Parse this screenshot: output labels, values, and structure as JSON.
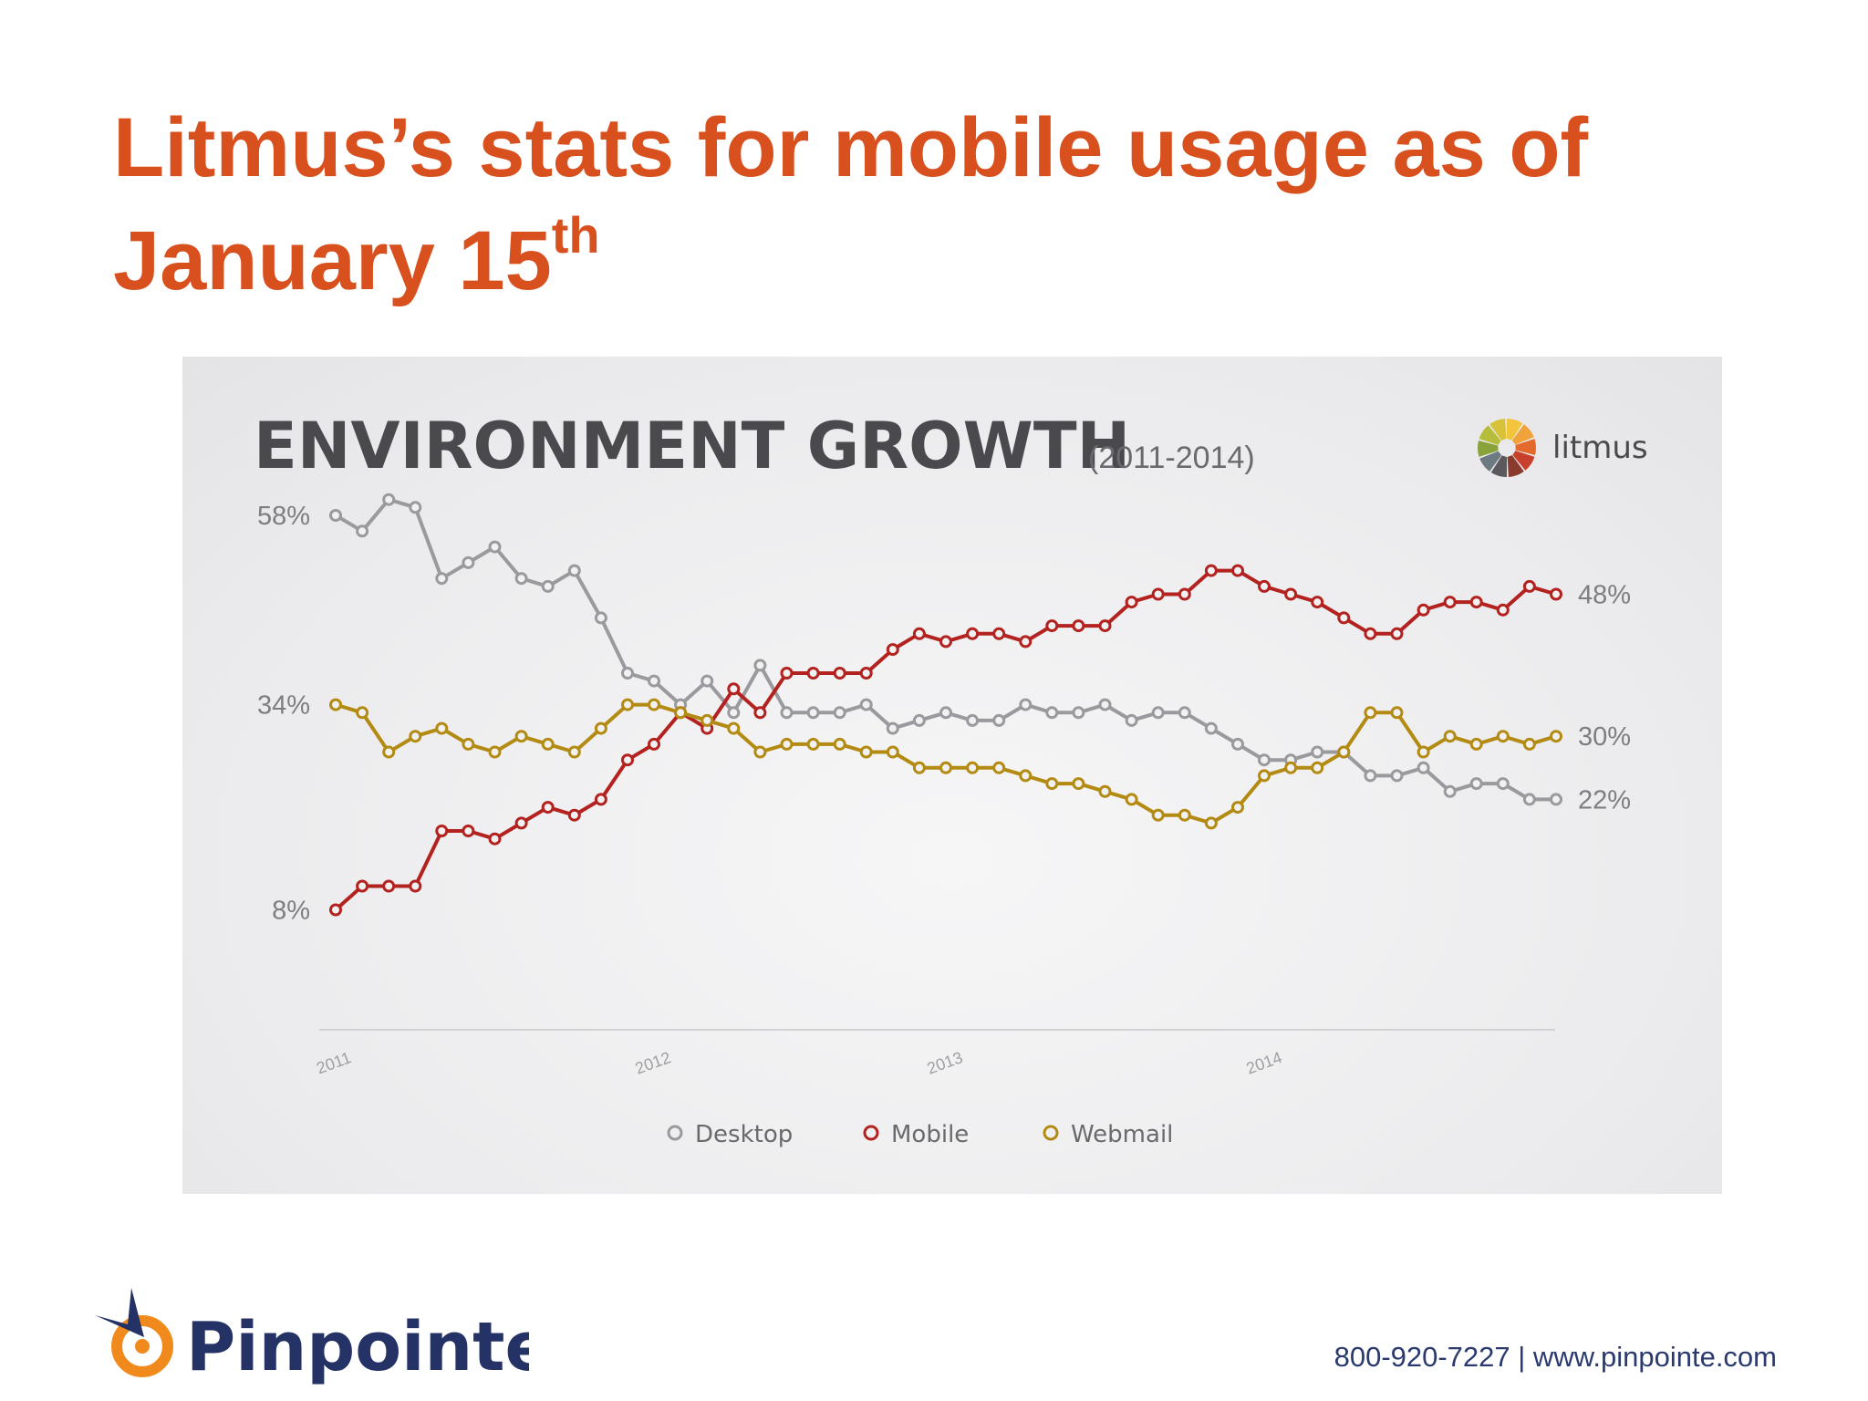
{
  "slide": {
    "title_line1": "Litmus’s stats for mobile usage as of",
    "title_line2": "January 15",
    "title_sup": "th",
    "brand": "Pinpointe",
    "contact": "800-920-7227 | www.pinpointe.com"
  },
  "colors": {
    "title": "#d9501f",
    "desktop": "#9a9a9e",
    "mobile": "#b3221f",
    "webmail": "#b38a12",
    "brand_navy": "#243266",
    "brand_orange": "#f08a1c"
  },
  "chart_data": {
    "type": "line",
    "title": "ENVIRONMENT GROWTH",
    "subtitle": "(2011-2014)",
    "logo_text": "litmus",
    "x_ticks": [
      "2011",
      "2012",
      "2013",
      "2014"
    ],
    "y_ticks": [
      {
        "value": 58,
        "label": "58%"
      },
      {
        "value": 34,
        "label": "34%"
      },
      {
        "value": 8,
        "label": "8%"
      }
    ],
    "legend_position": "bottom-center",
    "series": [
      {
        "name": "Desktop",
        "end_label": "22%",
        "values": [
          58,
          56,
          60,
          59,
          50,
          52,
          54,
          50,
          49,
          51,
          45,
          38,
          37,
          34,
          37,
          33,
          39,
          33,
          33,
          33,
          34,
          31,
          32,
          33,
          32,
          32,
          34,
          33,
          33,
          34,
          32,
          33,
          33,
          31,
          29,
          27,
          27,
          28,
          28,
          25,
          25,
          26,
          23,
          24,
          24,
          22,
          22
        ]
      },
      {
        "name": "Mobile",
        "end_label": "48%",
        "values": [
          8,
          11,
          11,
          11,
          18,
          18,
          17,
          19,
          21,
          20,
          22,
          27,
          29,
          33,
          31,
          36,
          33,
          38,
          38,
          38,
          38,
          41,
          43,
          42,
          43,
          43,
          42,
          44,
          44,
          44,
          47,
          48,
          48,
          51,
          51,
          49,
          48,
          47,
          45,
          43,
          43,
          46,
          47,
          47,
          46,
          49,
          48
        ]
      },
      {
        "name": "Webmail",
        "end_label": "30%",
        "values": [
          34,
          33,
          28,
          30,
          31,
          29,
          28,
          30,
          29,
          28,
          31,
          34,
          34,
          33,
          32,
          31,
          28,
          29,
          29,
          29,
          28,
          28,
          26,
          26,
          26,
          26,
          25,
          24,
          24,
          23,
          22,
          20,
          20,
          19,
          21,
          25,
          26,
          26,
          28,
          33,
          33,
          28,
          30,
          29,
          30,
          29,
          30
        ]
      }
    ]
  }
}
